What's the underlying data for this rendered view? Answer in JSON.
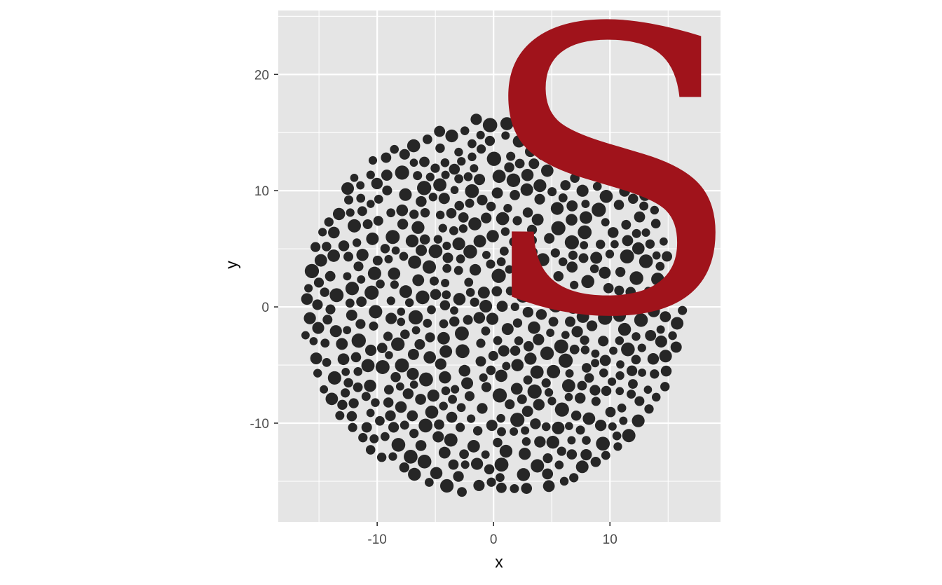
{
  "chart_data": {
    "type": "scatter",
    "title": "",
    "xlabel": "x",
    "ylabel": "y",
    "xlim": [
      -18.5,
      19.5
    ],
    "ylim": [
      -18.5,
      25.5
    ],
    "x_ticks": [
      -10,
      0,
      10
    ],
    "y_ticks": [
      -10,
      0,
      10,
      20
    ],
    "x_tick_labels": [
      "-10",
      "0",
      "10"
    ],
    "y_tick_labels": [
      "-10",
      "0",
      "10",
      "20"
    ],
    "grid": true,
    "legend": "none",
    "colors": {
      "panel_background": "#e5e5e5",
      "grid_line": "#ffffff",
      "points": "#262626",
      "overlay_letter": "#a0131b"
    },
    "packed_circles": {
      "description_shape": "circle",
      "center": [
        0,
        0
      ],
      "outer_radius": 16.7,
      "point_radius_range": [
        0.35,
        0.62
      ]
    },
    "overlay_text": "S",
    "overlay_anchor": [
      10,
      12
    ]
  }
}
